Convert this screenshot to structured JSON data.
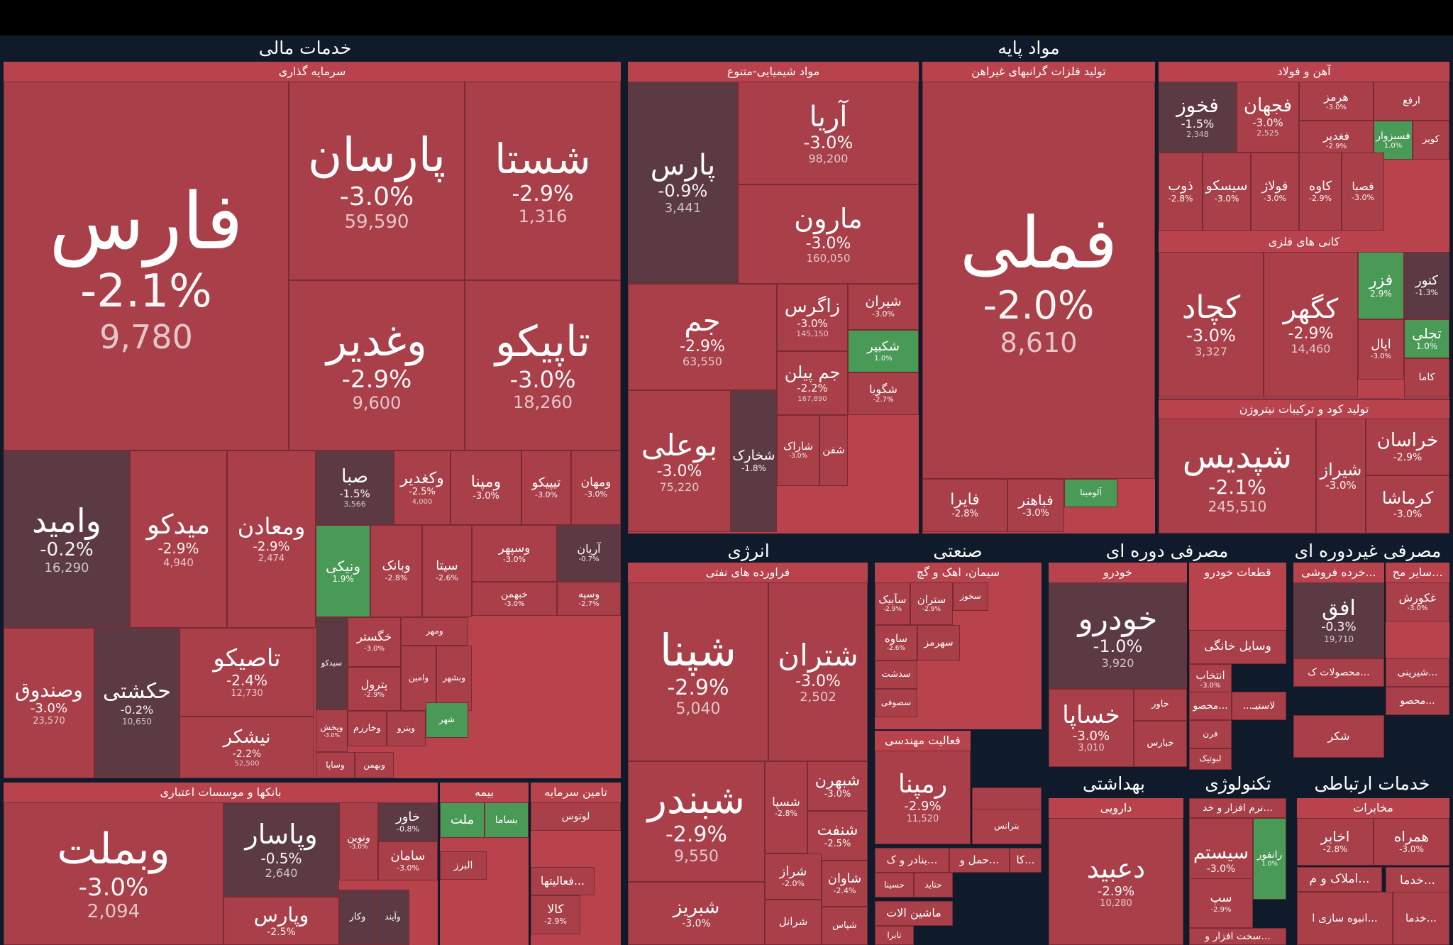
{
  "sectors": [
    {
      "title": "خدمات مالی"
    },
    {
      "title": "مواد پایه"
    },
    {
      "title": "انرژی"
    },
    {
      "title": "صنعتی"
    },
    {
      "title": "مصرفی دوره ای"
    },
    {
      "title": "مصرفی غیردوره ای"
    },
    {
      "title": "بهداشتی"
    },
    {
      "title": "تکنولوژی"
    },
    {
      "title": "خدمات ارتباطی"
    }
  ],
  "groups": [
    {
      "title": "سرمایه گذاری"
    },
    {
      "title": "مواد شیمیایی-متنوع"
    },
    {
      "title": "تولید فلزات گرانبهای غیراهن"
    },
    {
      "title": "آهن و فولاد"
    },
    {
      "title": "کانی های فلزی"
    },
    {
      "title": "تولید کود و ترکیبات نیتروژن"
    },
    {
      "title": "بانکها و موسسات اعتباری"
    },
    {
      "title": "بیمه"
    },
    {
      "title": "تامین سرمایه"
    },
    {
      "title": "فراورده های نفتی"
    },
    {
      "title": "سیمان، اهک و گچ"
    },
    {
      "title": "خودرو"
    },
    {
      "title": "قطعات خودرو"
    },
    {
      "title": "خرده فروشی..."
    },
    {
      "title": "سایر مح..."
    },
    {
      "title": "فعالیت مهندسی"
    },
    {
      "title": "دارویی"
    },
    {
      "title": "مخابرات"
    }
  ],
  "chart_data": {
    "type": "treemap",
    "title": "",
    "tiles": [
      {
        "symbol": "فارس",
        "change": "-2.1%",
        "value": "9,780",
        "color": "neg"
      },
      {
        "symbol": "پارسان",
        "change": "-3.0%",
        "value": "59,590",
        "color": "neg"
      },
      {
        "symbol": "شستا",
        "change": "-2.9%",
        "value": "1,316",
        "color": "neg"
      },
      {
        "symbol": "وغدیر",
        "change": "-2.9%",
        "value": "9,600",
        "color": "neg"
      },
      {
        "symbol": "تاپیکو",
        "change": "-3.0%",
        "value": "18,260",
        "color": "neg"
      },
      {
        "symbol": "وامید",
        "change": "-0.2%",
        "value": "16,290",
        "color": "dark"
      },
      {
        "symbol": "میدکو",
        "change": "-2.9%",
        "value": "4,940",
        "color": "neg"
      },
      {
        "symbol": "ومعادن",
        "change": "-2.9%",
        "value": "2,474",
        "color": "neg"
      },
      {
        "symbol": "صبا",
        "change": "-1.5%",
        "value": "3,566",
        "color": "dark"
      },
      {
        "symbol": "وکغدیر",
        "change": "-2.5%",
        "value": "4,000",
        "color": "neg"
      },
      {
        "symbol": "ومپنا",
        "change": "-3.0%",
        "value": "",
        "color": "neg"
      },
      {
        "symbol": "تیپیکو",
        "change": "-3.0%",
        "value": "",
        "color": "neg"
      },
      {
        "symbol": "ومهان",
        "change": "-3.0%",
        "value": "",
        "color": "neg"
      },
      {
        "symbol": "ونیکی",
        "change": "1.9%",
        "value": "",
        "color": "pos"
      },
      {
        "symbol": "وبانک",
        "change": "-2.8%",
        "value": "",
        "color": "neg"
      },
      {
        "symbol": "سیتا",
        "change": "-2.6%",
        "value": "",
        "color": "neg"
      },
      {
        "symbol": "وسپهر",
        "change": "-3.0%",
        "value": "",
        "color": "neg"
      },
      {
        "symbol": "آریان",
        "change": "-0.7%",
        "value": "",
        "color": "dark"
      },
      {
        "symbol": "خبهمن",
        "change": "-3.0%",
        "value": "",
        "color": "neg"
      },
      {
        "symbol": "وسپه",
        "change": "-2.7%",
        "value": "",
        "color": "neg"
      },
      {
        "symbol": "وصندوق",
        "change": "-3.0%",
        "value": "23,570",
        "color": "neg"
      },
      {
        "symbol": "حکشتی",
        "change": "-0.2%",
        "value": "10,650",
        "color": "dark"
      },
      {
        "symbol": "تاصیکو",
        "change": "-2.4%",
        "value": "12,730",
        "color": "neg"
      },
      {
        "symbol": "نیشکر",
        "change": "-2.2%",
        "value": "52,500",
        "color": "neg"
      },
      {
        "symbol": "خگستر",
        "change": "-3.0%",
        "value": "",
        "color": "neg"
      },
      {
        "symbol": "ومهر",
        "change": "",
        "value": "",
        "color": "neg"
      },
      {
        "symbol": "سیدکو",
        "change": "",
        "value": "",
        "color": "dark"
      },
      {
        "symbol": "پترول",
        "change": "-2.9%",
        "value": "",
        "color": "neg"
      },
      {
        "symbol": "وامین",
        "change": "",
        "value": "",
        "color": "neg"
      },
      {
        "symbol": "وبشهر",
        "change": "",
        "value": "",
        "color": "neg"
      },
      {
        "symbol": "وپخش",
        "change": "-3.0%",
        "value": "",
        "color": "neg"
      },
      {
        "symbol": "وخارزم",
        "change": "",
        "value": "",
        "color": "neg"
      },
      {
        "symbol": "ویترو",
        "change": "",
        "value": "",
        "color": "neg"
      },
      {
        "symbol": "شهر",
        "change": "",
        "value": "",
        "color": "pos"
      },
      {
        "symbol": "وساپا",
        "change": "",
        "value": "",
        "color": "neg"
      },
      {
        "symbol": "وبهمن",
        "change": "",
        "value": "",
        "color": "neg"
      },
      {
        "symbol": "پارس",
        "change": "-0.9%",
        "value": "3,441",
        "color": "dark"
      },
      {
        "symbol": "آریا",
        "change": "-3.0%",
        "value": "98,200",
        "color": "neg"
      },
      {
        "symbol": "مارون",
        "change": "-3.0%",
        "value": "160,050",
        "color": "neg"
      },
      {
        "symbol": "جم",
        "change": "-2.9%",
        "value": "63,550",
        "color": "neg"
      },
      {
        "symbol": "زاگرس",
        "change": "-3.0%",
        "value": "145,150",
        "color": "neg"
      },
      {
        "symbol": "شیران",
        "change": "-3.0%",
        "value": "",
        "color": "neg"
      },
      {
        "symbol": "شکبیر",
        "change": "1.0%",
        "value": "",
        "color": "pos"
      },
      {
        "symbol": "جم پیلن",
        "change": "-2.2%",
        "value": "167,890",
        "color": "neg"
      },
      {
        "symbol": "شگویا",
        "change": "-2.7%",
        "value": "",
        "color": "neg"
      },
      {
        "symbol": "بوعلی",
        "change": "-3.0%",
        "value": "75,220",
        "color": "neg"
      },
      {
        "symbol": "شخارک",
        "change": "-1.8%",
        "value": "",
        "color": "dark"
      },
      {
        "symbol": "شاراک",
        "change": "-3.0%",
        "value": "",
        "color": "neg"
      },
      {
        "symbol": "شفن",
        "change": "",
        "value": "",
        "color": "neg"
      },
      {
        "symbol": "فملی",
        "change": "-2.0%",
        "value": "8,610",
        "color": "neg"
      },
      {
        "symbol": "فایرا",
        "change": "-2.8%",
        "value": "",
        "color": "neg"
      },
      {
        "symbol": "فباهنر",
        "change": "-3.0%",
        "value": "",
        "color": "neg"
      },
      {
        "symbol": "آلومینا",
        "change": "",
        "value": "",
        "color": "pos"
      },
      {
        "symbol": "فخوز",
        "change": "-1.5%",
        "value": "2,348",
        "color": "dark"
      },
      {
        "symbol": "فجهان",
        "change": "-3.0%",
        "value": "2,525",
        "color": "neg"
      },
      {
        "symbol": "هرمز",
        "change": "-3.0%",
        "value": "",
        "color": "neg"
      },
      {
        "symbol": "ارفع",
        "change": "",
        "value": "",
        "color": "neg"
      },
      {
        "symbol": "فغدیر",
        "change": "-2.9%",
        "value": "",
        "color": "neg"
      },
      {
        "symbol": "فسبزوار",
        "change": "1.0%",
        "value": "",
        "color": "pos"
      },
      {
        "symbol": "کویر",
        "change": "",
        "value": "",
        "color": "neg"
      },
      {
        "symbol": "ذوب",
        "change": "-2.8%",
        "value": "",
        "color": "neg"
      },
      {
        "symbol": "سیسکو",
        "change": "-3.0%",
        "value": "",
        "color": "neg"
      },
      {
        "symbol": "فولاژ",
        "change": "-3.0%",
        "value": "",
        "color": "neg"
      },
      {
        "symbol": "کاوه",
        "change": "-2.9%",
        "value": "",
        "color": "neg"
      },
      {
        "symbol": "فصبا",
        "change": "-3.0%",
        "value": "",
        "color": "neg"
      },
      {
        "symbol": "کچاد",
        "change": "-3.0%",
        "value": "3,327",
        "color": "neg"
      },
      {
        "symbol": "کگهر",
        "change": "-2.9%",
        "value": "14,460",
        "color": "neg"
      },
      {
        "symbol": "فزر",
        "change": "2.9%",
        "value": "",
        "color": "pos"
      },
      {
        "symbol": "کنور",
        "change": "-1.3%",
        "value": "",
        "color": "dark"
      },
      {
        "symbol": "تجلی",
        "change": "1.0%",
        "value": "",
        "color": "pos"
      },
      {
        "symbol": "اپال",
        "change": "-3.0%",
        "value": "",
        "color": "neg"
      },
      {
        "symbol": "کاما",
        "change": "",
        "value": "",
        "color": "neg"
      },
      {
        "symbol": "شپدیس",
        "change": "-2.1%",
        "value": "245,510",
        "color": "neg"
      },
      {
        "symbol": "شیراز",
        "change": "-3.0%",
        "value": "",
        "color": "neg"
      },
      {
        "symbol": "خراسان",
        "change": "-2.9%",
        "value": "",
        "color": "neg"
      },
      {
        "symbol": "کرماشا",
        "change": "-3.0%",
        "value": "",
        "color": "neg"
      },
      {
        "symbol": "وبملت",
        "change": "-3.0%",
        "value": "2,094",
        "color": "neg"
      },
      {
        "symbol": "وپاسار",
        "change": "-0.5%",
        "value": "2,640",
        "color": "dark"
      },
      {
        "symbol": "وپارس",
        "change": "-2.5%",
        "value": "",
        "color": "neg"
      },
      {
        "symbol": "وتوین",
        "change": "-3.0%",
        "value": "",
        "color": "neg"
      },
      {
        "symbol": "خاور",
        "change": "-0.8%",
        "value": "",
        "color": "dark"
      },
      {
        "symbol": "سامان",
        "change": "-3.0%",
        "value": "",
        "color": "neg"
      },
      {
        "symbol": "وکار",
        "change": "",
        "value": "",
        "color": "dark"
      },
      {
        "symbol": "وآیند",
        "change": "",
        "value": "",
        "color": "dark"
      },
      {
        "symbol": "ملت",
        "change": "",
        "value": "",
        "color": "pos"
      },
      {
        "symbol": "بساما",
        "change": "",
        "value": "",
        "color": "pos"
      },
      {
        "symbol": "البرز",
        "change": "",
        "value": "",
        "color": "neg"
      },
      {
        "symbol": "لوتوس",
        "change": "",
        "value": "",
        "color": "neg"
      },
      {
        "symbol": "فعالیتها...",
        "change": "",
        "value": "",
        "color": "neg"
      },
      {
        "symbol": "کالا",
        "change": "-2.9%",
        "value": "",
        "color": "neg"
      },
      {
        "symbol": "شپنا",
        "change": "-2.9%",
        "value": "5,040",
        "color": "neg"
      },
      {
        "symbol": "شتران",
        "change": "-3.0%",
        "value": "2,502",
        "color": "neg"
      },
      {
        "symbol": "شبندر",
        "change": "-2.9%",
        "value": "9,550",
        "color": "neg"
      },
      {
        "symbol": "شسپا",
        "change": "-2.8%",
        "value": "",
        "color": "neg"
      },
      {
        "symbol": "شبهرن",
        "change": "-3.0%",
        "value": "",
        "color": "neg"
      },
      {
        "symbol": "شنفت",
        "change": "-2.5%",
        "value": "",
        "color": "neg"
      },
      {
        "symbol": "شبریز",
        "change": "-3.0%",
        "value": "",
        "color": "neg"
      },
      {
        "symbol": "شراز",
        "change": "-2.0%",
        "value": "",
        "color": "neg"
      },
      {
        "symbol": "شاوان",
        "change": "-2.4%",
        "value": "",
        "color": "neg"
      },
      {
        "symbol": "شرانل",
        "change": "",
        "value": "",
        "color": "neg"
      },
      {
        "symbol": "شپاس",
        "change": "",
        "value": "",
        "color": "neg"
      },
      {
        "symbol": "سآبیک",
        "change": "-2.9%",
        "value": "",
        "color": "neg"
      },
      {
        "symbol": "ستران",
        "change": "-2.9%",
        "value": "",
        "color": "neg"
      },
      {
        "symbol": "سخوز",
        "change": "",
        "value": "",
        "color": "neg"
      },
      {
        "symbol": "ساوه",
        "change": "-2.6%",
        "value": "",
        "color": "neg"
      },
      {
        "symbol": "سهرمز",
        "change": "",
        "value": "",
        "color": "neg"
      },
      {
        "symbol": "سدشت",
        "change": "",
        "value": "",
        "color": "neg"
      },
      {
        "symbol": "سصوفی",
        "change": "",
        "value": "",
        "color": "neg"
      },
      {
        "symbol": "رمپنا",
        "change": "-2.9%",
        "value": "11,520",
        "color": "neg"
      },
      {
        "symbol": "ماشین...",
        "change": "",
        "value": "",
        "color": "neg"
      },
      {
        "symbol": "بترانس",
        "change": "",
        "value": "",
        "color": "neg"
      },
      {
        "symbol": "بنادر و ک...",
        "change": "",
        "value": "",
        "color": "neg"
      },
      {
        "symbol": "حمل و...",
        "change": "",
        "value": "",
        "color": "neg"
      },
      {
        "symbol": "کا...",
        "change": "",
        "value": "",
        "color": "neg"
      },
      {
        "symbol": "حسینا",
        "change": "",
        "value": "",
        "color": "neg"
      },
      {
        "symbol": "حتاید",
        "change": "",
        "value": "",
        "color": "neg"
      },
      {
        "symbol": "ماشین الات",
        "change": "",
        "value": "",
        "color": "neg"
      },
      {
        "symbol": "تابرا",
        "change": "",
        "value": "",
        "color": "neg"
      },
      {
        "symbol": "خودرو",
        "change": "-1.0%",
        "value": "3,920",
        "color": "dark"
      },
      {
        "symbol": "خساپا",
        "change": "-3.0%",
        "value": "3,010",
        "color": "neg"
      },
      {
        "symbol": "خاور",
        "change": "",
        "value": "",
        "color": "neg"
      },
      {
        "symbol": "خبارس",
        "change": "",
        "value": "",
        "color": "neg"
      },
      {
        "symbol": "وسایل خانگی",
        "change": "",
        "value": "",
        "color": "neg"
      },
      {
        "symbol": "انتخاب",
        "change": "-3.0%",
        "value": "",
        "color": "neg"
      },
      {
        "symbol": "محصو...",
        "change": "",
        "value": "",
        "color": "neg"
      },
      {
        "symbol": "...لاستیـ",
        "change": "",
        "value": "",
        "color": "neg"
      },
      {
        "symbol": "فرن",
        "change": "",
        "value": "",
        "color": "neg"
      },
      {
        "symbol": "لبوتیک",
        "change": "",
        "value": "",
        "color": "neg"
      },
      {
        "symbol": "افق",
        "change": "-0.3%",
        "value": "19,710",
        "color": "dark"
      },
      {
        "symbol": "غکورش",
        "change": "-3.0%",
        "value": "",
        "color": "neg"
      },
      {
        "symbol": "محصولات ک...",
        "change": "",
        "value": "",
        "color": "neg"
      },
      {
        "symbol": "شیرینی...",
        "change": "",
        "value": "",
        "color": "neg"
      },
      {
        "symbol": "محصو...",
        "change": "",
        "value": "",
        "color": "neg"
      },
      {
        "symbol": "شکر",
        "change": "",
        "value": "",
        "color": "neg"
      },
      {
        "symbol": "دعبید",
        "change": "-2.9%",
        "value": "10,280",
        "color": "neg"
      },
      {
        "symbol": "سیستم",
        "change": "-3.0%",
        "value": "",
        "color": "neg"
      },
      {
        "symbol": "رانفور",
        "change": "1.0%",
        "value": "",
        "color": "pos"
      },
      {
        "symbol": "سپ",
        "change": "-2.9%",
        "value": "",
        "color": "neg"
      },
      {
        "symbol": "نرم افزار و خد...",
        "change": "",
        "value": "",
        "color": "neg"
      },
      {
        "symbol": "سخت افزار و...",
        "change": "",
        "value": "",
        "color": "neg"
      },
      {
        "symbol": "اخابر",
        "change": "-2.8%",
        "value": "",
        "color": "neg"
      },
      {
        "symbol": "همراه",
        "change": "-3.0%",
        "value": "",
        "color": "neg"
      },
      {
        "symbol": "خدما...",
        "change": "",
        "value": "",
        "color": "neg"
      },
      {
        "symbol": "املاک و م...",
        "change": "",
        "value": "",
        "color": "neg"
      },
      {
        "symbol": "انبوه سازی ا...",
        "change": "",
        "value": "",
        "color": "neg"
      },
      {
        "symbol": "خدما...",
        "change": "",
        "value": "",
        "color": "neg"
      }
    ]
  }
}
